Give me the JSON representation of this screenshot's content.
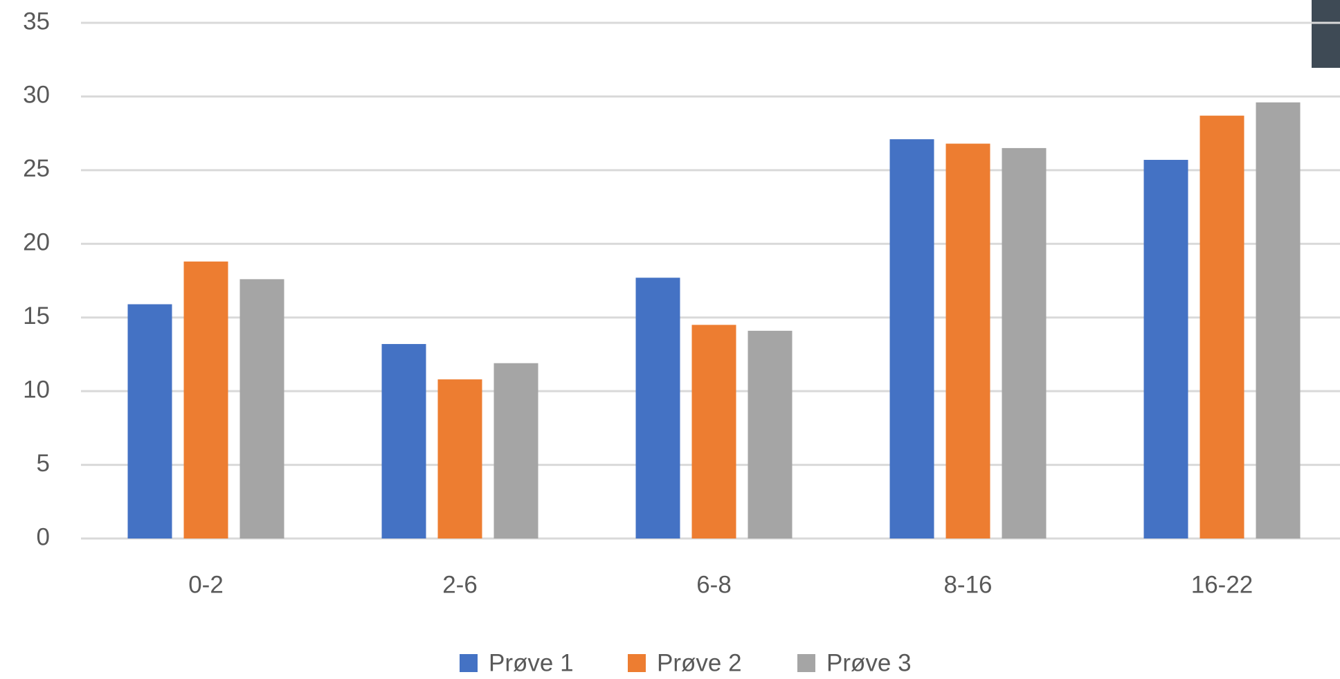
{
  "chart_data": {
    "type": "bar",
    "categories": [
      "0-2",
      "2-6",
      "6-8",
      "8-16",
      "16-22"
    ],
    "series": [
      {
        "name": "Prøve 1",
        "color": "#4472c4",
        "values": [
          15.9,
          13.2,
          17.7,
          27.1,
          25.7
        ]
      },
      {
        "name": "Prøve 2",
        "color": "#ed7d31",
        "values": [
          18.8,
          10.8,
          14.5,
          26.8,
          28.7
        ]
      },
      {
        "name": "Prøve 3",
        "color": "#a5a5a5",
        "values": [
          17.6,
          11.9,
          14.1,
          26.5,
          29.6
        ]
      }
    ],
    "ylim": [
      0,
      35
    ],
    "yticks": [
      0,
      5,
      10,
      15,
      20,
      25,
      30,
      35
    ],
    "grid": true,
    "legend": "bottom"
  }
}
